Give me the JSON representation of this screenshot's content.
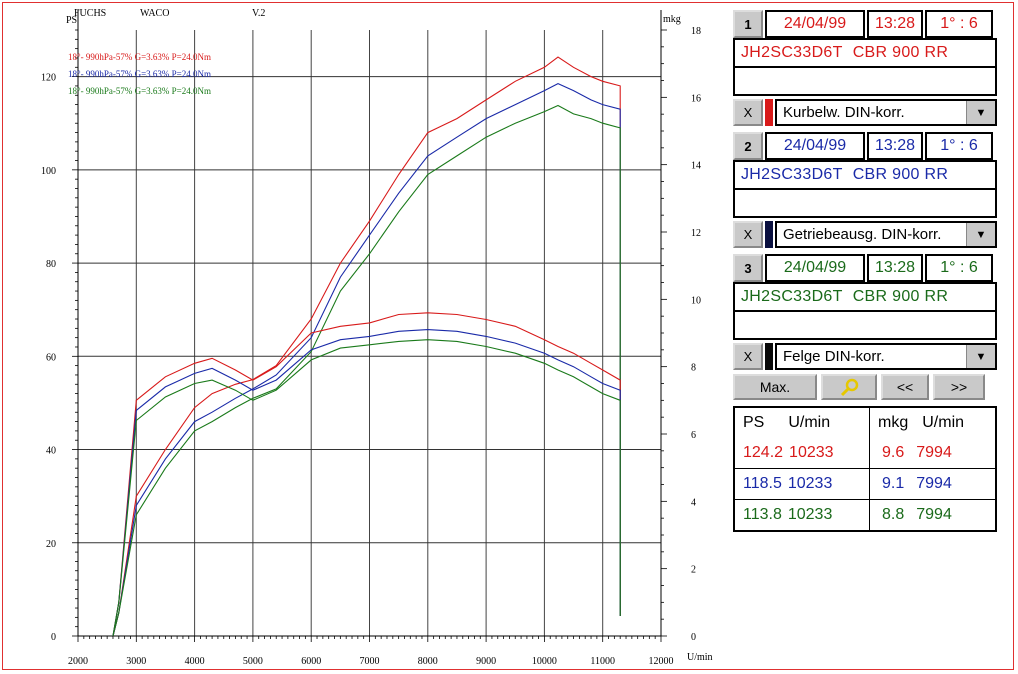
{
  "header": {
    "brand": "FUCHS",
    "mfr": "WACO",
    "version": "V.2"
  },
  "chart_data": {
    "type": "line",
    "x": [
      2700,
      3000,
      3500,
      4000,
      4300,
      4700,
      5000,
      5400,
      6000,
      6500,
      7000,
      7500,
      8000,
      8500,
      9000,
      9500,
      10000,
      10233,
      10500,
      10800,
      11000,
      11300
    ],
    "xlim": [
      2000,
      12000
    ],
    "xticks": [
      "2000",
      "3000",
      "4000",
      "5000",
      "6000",
      "7000",
      "8000",
      "9000",
      "10000",
      "11000",
      "12000"
    ],
    "xlabel": "U/min",
    "ylabel_left": "PS",
    "ylim_left": [
      0,
      130
    ],
    "yticks_left": [
      "0",
      "20",
      "40",
      "60",
      "80",
      "100",
      "120"
    ],
    "ylabel_right": "mkg",
    "ylim_right": [
      0,
      18
    ],
    "yticks_right": [
      "0",
      "2",
      "4",
      "6",
      "8",
      "10",
      "12",
      "14",
      "16",
      "18"
    ],
    "grid": true,
    "annotations": [
      {
        "text": "18°- 990hPa-57% G=3.63% P=24.0Nm",
        "color": "#d81a1a"
      },
      {
        "text": "18°- 990hPa-57% G=3.63% P=24.0Nm",
        "color": "#1a2aa8"
      },
      {
        "text": "18°- 990hPa-57% G=3.63% P=24.0Nm",
        "color": "#1a7a1a"
      }
    ],
    "series": [
      {
        "color": "#d81a1a",
        "axis": "left",
        "values": [
          5,
          30,
          40,
          49,
          52,
          54,
          55,
          58,
          68,
          80,
          89,
          99,
          108,
          111,
          115,
          119,
          122,
          124.2,
          122,
          120,
          119,
          118
        ]
      },
      {
        "color": "#1a2aa8",
        "axis": "left",
        "values": [
          5,
          28,
          38,
          46,
          48,
          51,
          53,
          56,
          64,
          77,
          86,
          95,
          103,
          107,
          111,
          114,
          117,
          118.5,
          117,
          115,
          114,
          113
        ]
      },
      {
        "color": "#1a7a1a",
        "axis": "left",
        "values": [
          5,
          26,
          36,
          44,
          46,
          49,
          51,
          53,
          61,
          74,
          82,
          91,
          99,
          103,
          107,
          110,
          112.5,
          113.8,
          112,
          111,
          110,
          109
        ]
      },
      {
        "color": "#d81a1a",
        "axis": "right",
        "values": [
          1,
          7.0,
          7.7,
          8.1,
          8.25,
          7.9,
          7.6,
          8.0,
          9.0,
          9.2,
          9.3,
          9.55,
          9.6,
          9.55,
          9.4,
          9.2,
          8.8,
          8.6,
          8.4,
          8.1,
          7.9,
          7.6
        ]
      },
      {
        "color": "#1a2aa8",
        "axis": "right",
        "values": [
          1,
          6.7,
          7.4,
          7.8,
          7.95,
          7.6,
          7.3,
          7.6,
          8.5,
          8.8,
          8.9,
          9.05,
          9.1,
          9.05,
          8.9,
          8.7,
          8.4,
          8.2,
          8.0,
          7.7,
          7.5,
          7.3
        ]
      },
      {
        "color": "#1a7a1a",
        "axis": "right",
        "values": [
          1,
          6.4,
          7.1,
          7.5,
          7.6,
          7.3,
          7.0,
          7.3,
          8.2,
          8.55,
          8.65,
          8.75,
          8.8,
          8.75,
          8.6,
          8.4,
          8.1,
          7.9,
          7.7,
          7.4,
          7.2,
          7.0
        ]
      }
    ]
  },
  "panel": {
    "runs": [
      {
        "num": "1",
        "date": "24/04/99",
        "time": "13:28",
        "ratio": "1° : 6",
        "vin": "JH2SC33D6T",
        "model": "CBR 900 RR",
        "x_label": "X",
        "correction": "Kurbelw. DIN-korr.",
        "color": "#d81a1a",
        "swatch": "#d81a1a"
      },
      {
        "num": "2",
        "date": "24/04/99",
        "time": "13:28",
        "ratio": "1° : 6",
        "vin": "JH2SC33D6T",
        "model": "CBR 900 RR",
        "x_label": "X",
        "correction": "Getriebeausg. DIN-korr.",
        "color": "#1a2aa8",
        "swatch": "#0a1040"
      },
      {
        "num": "3",
        "date": "24/04/99",
        "time": "13:28",
        "ratio": "1° : 6",
        "vin": "JH2SC33D6T",
        "model": "CBR 900 RR",
        "x_label": "X",
        "correction": "Felge DIN-korr.",
        "color": "#1a6a1a",
        "swatch": "#0a0a0a"
      }
    ],
    "nav": {
      "max": "Max.",
      "prev": "<<",
      "next": ">>"
    },
    "table": {
      "headers": {
        "ps": "PS",
        "ps_rpm": "U/min",
        "mkg": "mkg",
        "mkg_rpm": "U/min"
      },
      "rows": [
        {
          "ps": "124.2",
          "ps_rpm": "10233",
          "mkg": "9.6",
          "mkg_rpm": "7994",
          "color": "#d81a1a"
        },
        {
          "ps": "118.5",
          "ps_rpm": "10233",
          "mkg": "9.1",
          "mkg_rpm": "7994",
          "color": "#1a2aa8"
        },
        {
          "ps": "113.8",
          "ps_rpm": "10233",
          "mkg": "8.8",
          "mkg_rpm": "7994",
          "color": "#1a6a1a"
        }
      ]
    }
  }
}
